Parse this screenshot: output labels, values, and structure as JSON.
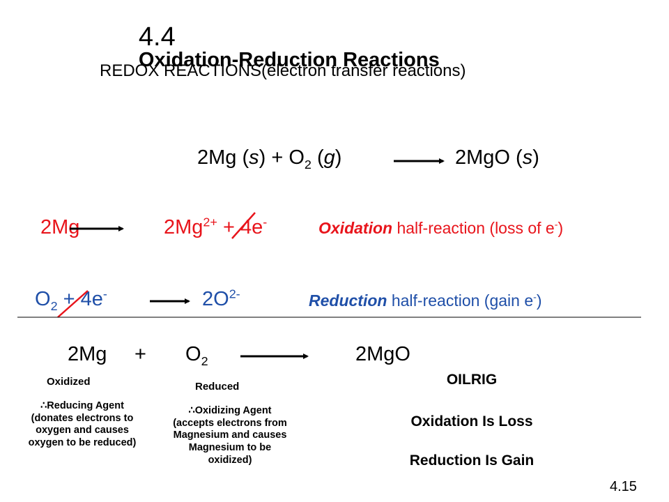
{
  "title": {
    "number": "4.4",
    "text": "Oxidation-Reduction Reactions"
  },
  "subtitle": "REDOX REACTIONS(electron transfer reactions)",
  "overall": [
    "2Mg (",
    "s",
    ") + O",
    "2",
    " (",
    "g",
    ")",
    "2MgO (",
    "s",
    ")"
  ],
  "oxidation": {
    "left": "2Mg",
    "right": [
      "2Mg",
      "2+",
      " + 4e",
      "-"
    ],
    "label": "Oxidation",
    "description": [
      " half-reaction (loss of e",
      "-",
      ")"
    ]
  },
  "reduction": {
    "left": [
      "O",
      "2",
      " + 4e",
      "-"
    ],
    "right": [
      "2O",
      "2-"
    ],
    "label": "Reduction",
    "description": [
      " half-reaction (gain e",
      "-",
      ")"
    ]
  },
  "net": {
    "left": [
      "2Mg",
      "+",
      "O",
      "2"
    ],
    "right": "2MgO",
    "oxidized": "Oxidized",
    "reduced": "Reduced",
    "reducing_agent": "∴Reducing Agent (donates electrons to oxygen and causes oxygen to be reduced)",
    "oxidizing_agent": "∴Oxidizing Agent (accepts electrons from Magnesium and causes Magnesium to be oxidized)"
  },
  "mnemonic": {
    "title": "OILRIG",
    "lines": [
      "Oxidation Is Loss",
      "Reduction Is Gain"
    ]
  },
  "page_number": "4.15"
}
